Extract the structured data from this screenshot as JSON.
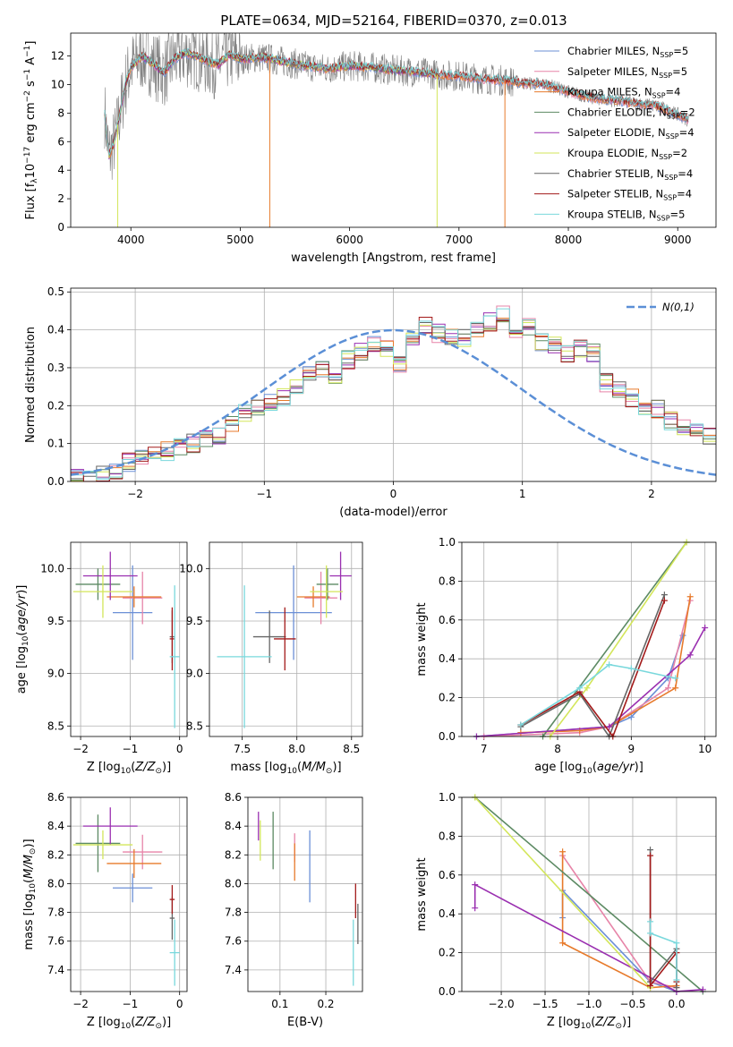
{
  "figure_title": "PLATE=0634, MJD=52164, FIBERID=0370, z=0.013",
  "colors": {
    "ChabrierMILES": "#6b8fd6",
    "SalpeterMILES": "#e784a8",
    "KroupaMILES": "#e77a2b",
    "ChabrierELODIE": "#5c8a63",
    "SalpeterELODIE": "#9a2fb0",
    "KroupaELODIE": "#d3e65a",
    "ChabrierSTELIB": "#666666",
    "SalpeterSTELIB": "#a31a1a",
    "KroupaSTELIB": "#79d8dc",
    "data": "#7f7f7f",
    "gaussian": "#5b8fd6"
  },
  "chart_data": [
    {
      "id": "spectrum",
      "type": "line",
      "xlabel": "wavelength [Angstrom, rest frame]",
      "ylabel": "Flux [f$_\\lambda$10$^{-17}$ erg cm$^{-2}$ s$^{-1}$ A$^{-1}$]",
      "xlim": [
        3450,
        9350
      ],
      "ylim": [
        0,
        13.6
      ],
      "xticks": [
        4000,
        5000,
        6000,
        7000,
        8000,
        9000
      ],
      "yticks": [
        0,
        2,
        4,
        6,
        8,
        10,
        12
      ],
      "continuum": {
        "x": [
          3760,
          3800,
          3850,
          3900,
          3950,
          4000,
          4100,
          4200,
          4300,
          4400,
          4500,
          4600,
          4700,
          4800,
          4900,
          5000,
          5200,
          5400,
          5600,
          5800,
          6000,
          6200,
          6400,
          6600,
          6800,
          7000,
          7200,
          7400,
          7600,
          7800,
          8000,
          8200,
          8400,
          8600,
          8800,
          9000,
          9100
        ],
        "y": [
          8.0,
          5.0,
          6.0,
          8.0,
          10.0,
          11.2,
          12.0,
          11.5,
          10.8,
          11.8,
          12.2,
          12.0,
          11.6,
          11.4,
          12.1,
          11.8,
          11.9,
          11.6,
          11.3,
          11.1,
          11.3,
          11.2,
          11.0,
          10.9,
          10.7,
          10.6,
          10.4,
          10.3,
          10.1,
          10.0,
          9.5,
          9.1,
          8.9,
          8.7,
          8.5,
          7.9,
          7.5
        ]
      },
      "legend": {
        "location": "upper right",
        "entries": [
          {
            "label": "Chabrier MILES, N",
            "ssp": "5",
            "key": "ChabrierMILES"
          },
          {
            "label": "Salpeter MILES, N",
            "ssp": "5",
            "key": "SalpeterMILES"
          },
          {
            "label": "Kroupa MILES, N",
            "ssp": "4",
            "key": "KroupaMILES"
          },
          {
            "label": "Chabrier ELODIE, N",
            "ssp": "2",
            "key": "ChabrierELODIE"
          },
          {
            "label": "Salpeter ELODIE, N",
            "ssp": "4",
            "key": "SalpeterELODIE"
          },
          {
            "label": "Kroupa ELODIE, N",
            "ssp": "2",
            "key": "KroupaELODIE"
          },
          {
            "label": "Chabrier STELIB, N",
            "ssp": "4",
            "key": "ChabrierSTELIB"
          },
          {
            "label": "Salpeter STELIB, N",
            "ssp": "4",
            "key": "SalpeterSTELIB"
          },
          {
            "label": "Kroupa STELIB, N",
            "ssp": "5",
            "key": "KroupaSTELIB"
          }
        ]
      }
    },
    {
      "id": "residuals",
      "type": "line",
      "xlabel": "(data-model)/error",
      "ylabel": "Normed distribution",
      "xlim": [
        -2.5,
        2.5
      ],
      "ylim": [
        0,
        0.51
      ],
      "xticks": [
        -2,
        -1,
        0,
        1,
        2
      ],
      "yticks": [
        0.0,
        0.1,
        0.2,
        0.3,
        0.4,
        0.5
      ],
      "legend_label": "N(0,1)",
      "bin_width": 0.1,
      "bin_start": -2.5,
      "base_hist": [
        0.01,
        0.01,
        0.02,
        0.03,
        0.05,
        0.06,
        0.07,
        0.08,
        0.09,
        0.1,
        0.11,
        0.12,
        0.15,
        0.18,
        0.19,
        0.21,
        0.22,
        0.25,
        0.29,
        0.3,
        0.28,
        0.32,
        0.34,
        0.36,
        0.35,
        0.31,
        0.38,
        0.41,
        0.39,
        0.38,
        0.38,
        0.4,
        0.42,
        0.44,
        0.38,
        0.41,
        0.37,
        0.36,
        0.34,
        0.35,
        0.34,
        0.26,
        0.24,
        0.22,
        0.2,
        0.19,
        0.16,
        0.14,
        0.13,
        0.12,
        0.1,
        0.09,
        0.08,
        0.07,
        0.06,
        0.05,
        0.045,
        0.04,
        0.035,
        0.03,
        0.025,
        0.02,
        0.02,
        0.02,
        0.02,
        0.02,
        0.02,
        0.02,
        0.02,
        0.02,
        0.02,
        0.02,
        0.02,
        0.02,
        0.02,
        0.02,
        0.02,
        0.02,
        0.02,
        0.02,
        0.02,
        0.02,
        0.02,
        0.02,
        0.02,
        0.02,
        0.02,
        0.02,
        0.02,
        0.02,
        0.02,
        0.02,
        0.02,
        0.02,
        0.02,
        0.02,
        0.02,
        0.02,
        0.02,
        0.02
      ]
    },
    {
      "id": "age_vs_Z",
      "type": "scatter",
      "xlabel": "Z [log10(Z/Zsun)]",
      "ylabel": "age [log10(age/yr)]",
      "xlim": [
        -2.2,
        0.15
      ],
      "ylim": [
        8.4,
        10.25
      ],
      "xticks": [
        -2,
        -1,
        0
      ],
      "yticks": [
        8.5,
        9.0,
        9.5,
        10.0
      ],
      "points": [
        {
          "key": "ChabrierMILES",
          "x": -0.95,
          "y": 9.58,
          "xerr": 0.4,
          "yerr": 0.45
        },
        {
          "key": "SalpeterMILES",
          "x": -0.75,
          "y": 9.72,
          "xerr": 0.4,
          "yerr": 0.25
        },
        {
          "key": "KroupaMILES",
          "x": -0.92,
          "y": 9.73,
          "xerr": 0.55,
          "yerr": 0.1
        },
        {
          "key": "ChabrierELODIE",
          "x": -1.65,
          "y": 9.85,
          "xerr": 0.45,
          "yerr": 0.15
        },
        {
          "key": "SalpeterELODIE",
          "x": -1.4,
          "y": 9.93,
          "xerr": 0.55,
          "yerr": 0.23
        },
        {
          "key": "KroupaELODIE",
          "x": -1.55,
          "y": 9.78,
          "xerr": 0.6,
          "yerr": 0.25
        },
        {
          "key": "ChabrierSTELIB",
          "x": -0.15,
          "y": 9.35,
          "xerr": 0.05,
          "yerr": 0.25
        },
        {
          "key": "SalpeterSTELIB",
          "x": -0.15,
          "y": 9.33,
          "xerr": 0.05,
          "yerr": 0.3
        },
        {
          "key": "KroupaSTELIB",
          "x": -0.1,
          "y": 9.16,
          "xerr": 0.1,
          "yerr": 0.68
        }
      ]
    },
    {
      "id": "age_vs_mass",
      "type": "scatter",
      "xlabel": "mass [log10(M/Msun)]",
      "ylabel": "",
      "xlim": [
        7.2,
        8.6
      ],
      "ylim": [
        8.4,
        10.25
      ],
      "xticks": [
        7.5,
        8.0,
        8.5
      ],
      "yticks": [
        8.5,
        9.0,
        9.5,
        10.0
      ],
      "points": [
        {
          "key": "ChabrierMILES",
          "x": 7.97,
          "y": 9.58,
          "xerr": 0.35,
          "yerr": 0.45
        },
        {
          "key": "SalpeterMILES",
          "x": 8.22,
          "y": 9.72,
          "xerr": 0.15,
          "yerr": 0.25
        },
        {
          "key": "KroupaMILES",
          "x": 8.15,
          "y": 9.73,
          "xerr": 0.15,
          "yerr": 0.1
        },
        {
          "key": "ChabrierELODIE",
          "x": 8.28,
          "y": 9.85,
          "xerr": 0.1,
          "yerr": 0.15
        },
        {
          "key": "SalpeterELODIE",
          "x": 8.4,
          "y": 9.93,
          "xerr": 0.1,
          "yerr": 0.23
        },
        {
          "key": "KroupaELODIE",
          "x": 8.27,
          "y": 9.78,
          "xerr": 0.15,
          "yerr": 0.25
        },
        {
          "key": "ChabrierSTELIB",
          "x": 7.75,
          "y": 9.35,
          "xerr": 0.15,
          "yerr": 0.25
        },
        {
          "key": "SalpeterSTELIB",
          "x": 7.89,
          "y": 9.33,
          "xerr": 0.1,
          "yerr": 0.3
        },
        {
          "key": "KroupaSTELIB",
          "x": 7.52,
          "y": 9.16,
          "xerr": 0.25,
          "yerr": 0.68
        }
      ]
    },
    {
      "id": "massweight_vs_age",
      "type": "line",
      "xlabel": "age [log10(age/yr)]",
      "ylabel": "mass weight",
      "xlim": [
        6.7,
        10.15
      ],
      "ylim": [
        0,
        1.0
      ],
      "xticks": [
        7,
        8,
        9,
        10
      ],
      "yticks": [
        0.0,
        0.2,
        0.4,
        0.6,
        0.8,
        1.0
      ],
      "series": [
        {
          "key": "ChabrierMILES",
          "x": [
            6.9,
            8.7,
            9.0,
            9.5,
            9.7
          ],
          "y": [
            0.0,
            0.05,
            0.1,
            0.3,
            0.52
          ]
        },
        {
          "key": "SalpeterMILES",
          "x": [
            7.0,
            8.3,
            8.7,
            9.5,
            9.8
          ],
          "y": [
            0.0,
            0.02,
            0.05,
            0.25,
            0.7
          ]
        },
        {
          "key": "KroupaMILES",
          "x": [
            7.5,
            8.3,
            8.7,
            9.6,
            9.8
          ],
          "y": [
            0.02,
            0.03,
            0.05,
            0.25,
            0.72
          ]
        },
        {
          "key": "ChabrierELODIE",
          "x": [
            7.8,
            9.75
          ],
          "y": [
            0.0,
            1.0
          ]
        },
        {
          "key": "SalpeterELODIE",
          "x": [
            6.9,
            8.7,
            9.8,
            10.0
          ],
          "y": [
            0.0,
            0.05,
            0.42,
            0.56
          ]
        },
        {
          "key": "KroupaELODIE",
          "x": [
            7.9,
            8.4,
            9.75
          ],
          "y": [
            0.0,
            0.25,
            1.0
          ]
        },
        {
          "key": "ChabrierSTELIB",
          "x": [
            7.5,
            8.3,
            8.7,
            9.45
          ],
          "y": [
            0.05,
            0.22,
            0.0,
            0.73
          ]
        },
        {
          "key": "SalpeterSTELIB",
          "x": [
            7.5,
            8.3,
            8.75,
            9.45
          ],
          "y": [
            0.06,
            0.23,
            0.0,
            0.7
          ]
        },
        {
          "key": "KroupaSTELIB",
          "x": [
            7.5,
            8.3,
            8.7,
            9.0,
            9.6
          ],
          "y": [
            0.06,
            0.25,
            0.37,
            0.35,
            0.3
          ]
        }
      ]
    },
    {
      "id": "mass_vs_Z",
      "type": "scatter",
      "xlabel": "Z [log10(Z/Zsun)]",
      "ylabel": "mass [log10(M/Msun)]",
      "xlim": [
        -2.2,
        0.15
      ],
      "ylim": [
        7.25,
        8.6
      ],
      "xticks": [
        -2,
        -1,
        0
      ],
      "yticks": [
        7.4,
        7.6,
        7.8,
        8.0,
        8.2,
        8.4,
        8.6
      ],
      "points": [
        {
          "key": "ChabrierMILES",
          "x": -0.95,
          "y": 7.97,
          "xerr": 0.4,
          "yerr": 0.1
        },
        {
          "key": "SalpeterMILES",
          "x": -0.75,
          "y": 8.22,
          "xerr": 0.4,
          "yerr": 0.12
        },
        {
          "key": "KroupaMILES",
          "x": -0.92,
          "y": 8.14,
          "xerr": 0.55,
          "yerr": 0.1
        },
        {
          "key": "ChabrierELODIE",
          "x": -1.65,
          "y": 8.28,
          "xerr": 0.45,
          "yerr": 0.2
        },
        {
          "key": "SalpeterELODIE",
          "x": -1.4,
          "y": 8.4,
          "xerr": 0.55,
          "yerr": 0.13
        },
        {
          "key": "KroupaELODIE",
          "x": -1.55,
          "y": 8.27,
          "xerr": 0.6,
          "yerr": 0.1
        },
        {
          "key": "ChabrierSTELIB",
          "x": -0.15,
          "y": 7.76,
          "xerr": 0.05,
          "yerr": 0.15
        },
        {
          "key": "SalpeterSTELIB",
          "x": -0.15,
          "y": 7.89,
          "xerr": 0.05,
          "yerr": 0.1
        },
        {
          "key": "KroupaSTELIB",
          "x": -0.1,
          "y": 7.52,
          "xerr": 0.1,
          "yerr": 0.23
        }
      ]
    },
    {
      "id": "mass_vs_EBV",
      "type": "scatter",
      "xlabel": "E(B-V)",
      "ylabel": "",
      "xlim": [
        0.03,
        0.28
      ],
      "ylim": [
        7.25,
        8.6
      ],
      "xticks": [
        0.1,
        0.2
      ],
      "yticks": [
        7.4,
        7.6,
        7.8,
        8.0,
        8.2,
        8.4,
        8.6
      ],
      "points": [
        {
          "key": "ChabrierMILES",
          "x": 0.165,
          "y": 8.12,
          "xerr": 0,
          "yerr": 0.25
        },
        {
          "key": "SalpeterMILES",
          "x": 0.132,
          "y": 8.25,
          "xerr": 0,
          "yerr": 0.1
        },
        {
          "key": "KroupaMILES",
          "x": 0.132,
          "y": 8.15,
          "xerr": 0,
          "yerr": 0.13
        },
        {
          "key": "ChabrierELODIE",
          "x": 0.085,
          "y": 8.3,
          "xerr": 0,
          "yerr": 0.2
        },
        {
          "key": "SalpeterELODIE",
          "x": 0.053,
          "y": 8.4,
          "xerr": 0,
          "yerr": 0.1
        },
        {
          "key": "KroupaELODIE",
          "x": 0.057,
          "y": 8.3,
          "xerr": 0,
          "yerr": 0.14
        },
        {
          "key": "ChabrierSTELIB",
          "x": 0.27,
          "y": 7.72,
          "xerr": 0,
          "yerr": 0.14
        },
        {
          "key": "SalpeterSTELIB",
          "x": 0.265,
          "y": 7.88,
          "xerr": 0,
          "yerr": 0.12
        },
        {
          "key": "KroupaSTELIB",
          "x": 0.26,
          "y": 7.52,
          "xerr": 0,
          "yerr": 0.23
        }
      ]
    },
    {
      "id": "massweight_vs_Z",
      "type": "line",
      "xlabel": "Z [log10(Z/Zsun)]",
      "ylabel": "mass weight",
      "xlim": [
        -2.45,
        0.45
      ],
      "ylim": [
        0,
        1.0
      ],
      "xticks": [
        -2.0,
        -1.5,
        -1.0,
        -0.5,
        0.0
      ],
      "yticks": [
        0.0,
        0.2,
        0.4,
        0.6,
        0.8,
        1.0
      ],
      "series": [
        {
          "key": "ChabrierMILES",
          "x": [
            -1.3,
            -1.3,
            -0.3,
            0.0
          ],
          "y": [
            0.38,
            0.52,
            0.05,
            0.0
          ]
        },
        {
          "key": "SalpeterMILES",
          "x": [
            -1.3,
            -0.3,
            0.0
          ],
          "y": [
            0.7,
            0.05,
            0.02
          ]
        },
        {
          "key": "KroupaMILES",
          "x": [
            -1.3,
            -1.3,
            -0.3,
            0.0
          ],
          "y": [
            0.72,
            0.25,
            0.02,
            0.03
          ]
        },
        {
          "key": "ChabrierELODIE",
          "x": [
            -2.3,
            0.3
          ],
          "y": [
            1.0,
            0.0
          ]
        },
        {
          "key": "SalpeterELODIE",
          "x": [
            -2.3,
            -2.3,
            0.0,
            0.3
          ],
          "y": [
            0.43,
            0.55,
            0.0,
            0.01
          ]
        },
        {
          "key": "KroupaELODIE",
          "x": [
            -2.3,
            -0.3
          ],
          "y": [
            1.0,
            0.02
          ]
        },
        {
          "key": "ChabrierSTELIB",
          "x": [
            -0.3,
            -0.3,
            0.0,
            0.0
          ],
          "y": [
            0.73,
            0.05,
            0.22,
            0.02
          ]
        },
        {
          "key": "SalpeterSTELIB",
          "x": [
            -0.3,
            -0.3,
            0.0,
            0.0
          ],
          "y": [
            0.7,
            0.03,
            0.2,
            0.05
          ]
        },
        {
          "key": "KroupaSTELIB",
          "x": [
            -0.3,
            -0.3,
            0.0,
            0.0
          ],
          "y": [
            0.36,
            0.3,
            0.25,
            0.06
          ]
        }
      ]
    }
  ]
}
